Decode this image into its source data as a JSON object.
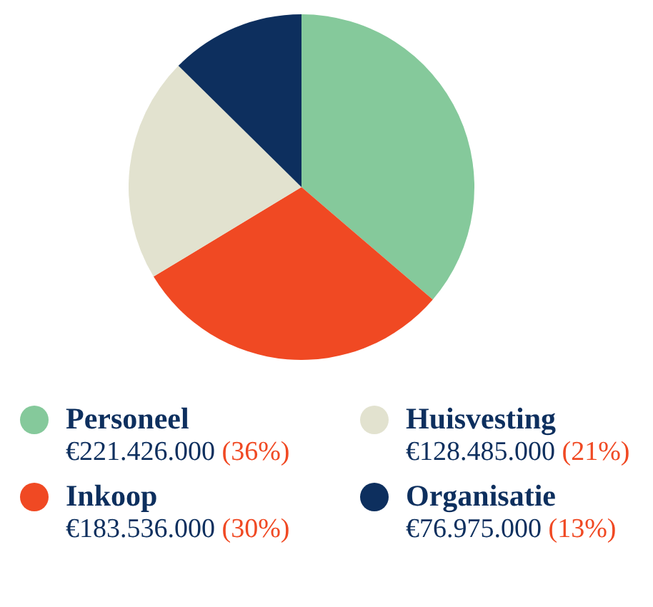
{
  "chart_data": {
    "type": "pie",
    "categories": [
      "Personeel",
      "Inkoop",
      "Huisvesting",
      "Organisatie"
    ],
    "values": [
      221426000,
      183536000,
      128485000,
      76975000
    ],
    "colors": [
      "#85c99b",
      "#f04923",
      "#e2e2cf",
      "#0d2f5e"
    ],
    "value_labels": [
      "€221.426.000 (36%)",
      "€183.536.000 (30%)",
      "€128.485.000 (21%)",
      "€76.975.000 (13%)"
    ],
    "legend": "bottom"
  }
}
